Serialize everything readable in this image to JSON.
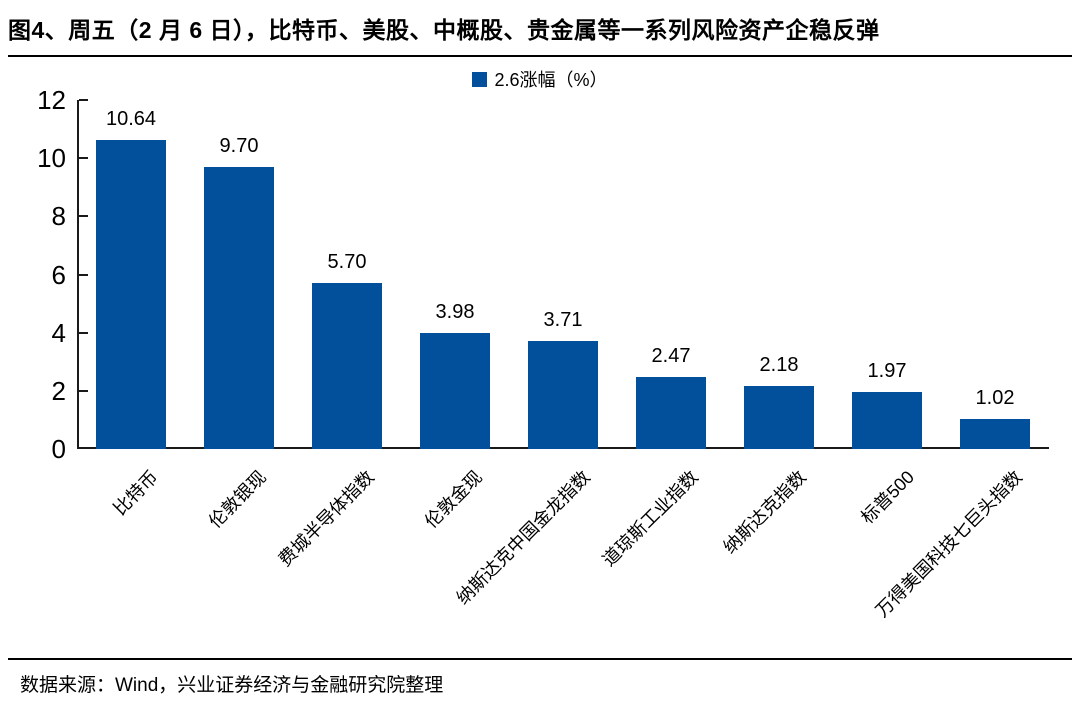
{
  "title": "图4、周五（2 月 6 日），比特币、美股、中概股、贵金属等一系列风险资产企稳反弹",
  "source": "数据来源：Wind，兴业证券经济与金融研究院整理",
  "colors": {
    "bar": "#02509b",
    "axis": "#1a1a1a",
    "text": "#000000",
    "background": "#ffffff"
  },
  "chart_data": {
    "type": "bar",
    "title": "图4、周五（2 月 6 日），比特币、美股、中概股、贵金属等一系列风险资产企稳反弹",
    "legend": "2.6涨幅（%）",
    "legend_position": "top-center",
    "categories": [
      "比特币",
      "伦敦银现",
      "费城半导体指数",
      "伦敦金现",
      "纳斯达克中国金龙指数",
      "道琼斯工业指数",
      "纳斯达克指数",
      "标普500",
      "万得美国科技七巨头指数"
    ],
    "values": [
      10.64,
      9.7,
      5.7,
      3.98,
      3.71,
      2.47,
      2.18,
      1.97,
      1.02
    ],
    "value_labels": [
      "10.64",
      "9.70",
      "5.70",
      "3.98",
      "3.71",
      "2.47",
      "2.18",
      "1.97",
      "1.02"
    ],
    "xlabel": "",
    "ylabel": "",
    "ylim": [
      0,
      12
    ],
    "yticks": [
      0,
      2,
      4,
      6,
      8,
      10,
      12
    ],
    "grid": false,
    "bar_color": "#02509b"
  }
}
